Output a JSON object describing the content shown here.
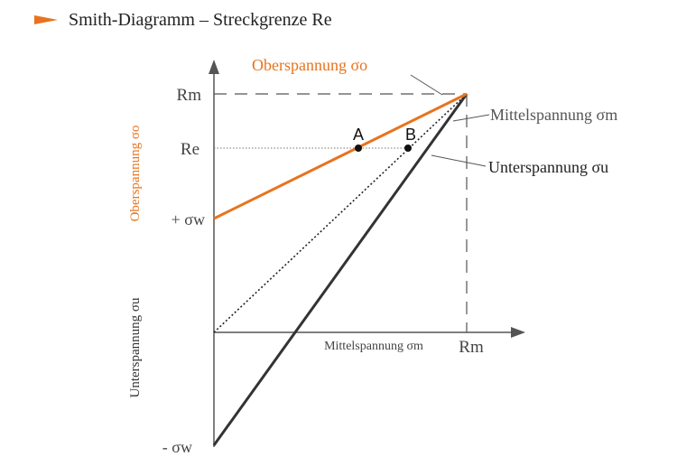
{
  "title": "Smith-Diagramm – Streckgrenze Re",
  "colors": {
    "accent": "#E8731E",
    "line_dark": "#333333",
    "axis": "#555555",
    "text_gray": "#555555"
  },
  "axes": {
    "y_top_rm": "Rm",
    "y_re": "Re",
    "y_plus_sigma_w": "+ σw",
    "y_minus_sigma_w": "- σw",
    "x_rm": "Rm",
    "x_label": "Mittelspannung σm",
    "y_label_upper": "Oberspannung σo",
    "y_label_lower": "Unterspannung σu"
  },
  "curves": {
    "oberspannung": "Oberspannung σo",
    "mittelspannung": "Mittelspannung σm",
    "unterspannung": "Unterspannung σu"
  },
  "points": {
    "a": "A",
    "b": "B"
  }
}
